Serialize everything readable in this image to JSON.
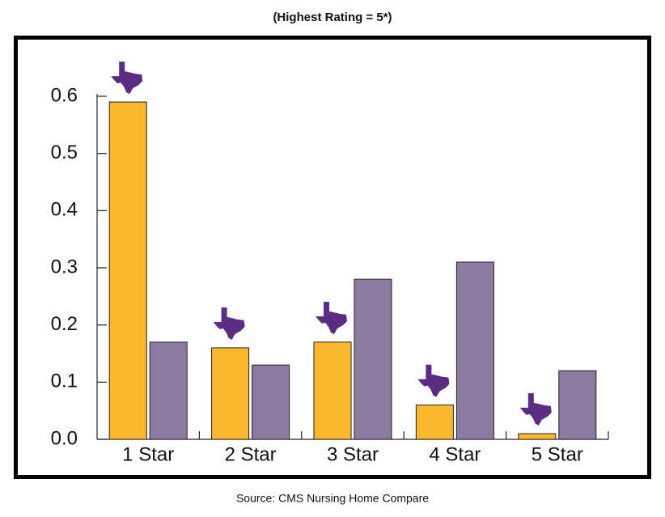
{
  "chart_data": {
    "type": "bar",
    "subtitle": "(Highest Rating = 5*)",
    "source": "Source: CMS Nursing Home Compare",
    "categories": [
      "1 Star",
      "2 Star",
      "3 Star",
      "4 Star",
      "5 Star"
    ],
    "series": [
      {
        "color": "#f9b92f",
        "values": [
          0.59,
          0.16,
          0.17,
          0.06,
          0.01
        ]
      },
      {
        "color": "#8c7aa0",
        "values": [
          0.17,
          0.13,
          0.28,
          0.31,
          0.12
        ]
      }
    ],
    "ylim": [
      0,
      0.6
    ],
    "yticks": [
      {
        "value": 0,
        "label": "0.0"
      },
      0.1,
      0.2,
      0.3,
      0.4,
      0.5,
      0.6
    ]
  }
}
